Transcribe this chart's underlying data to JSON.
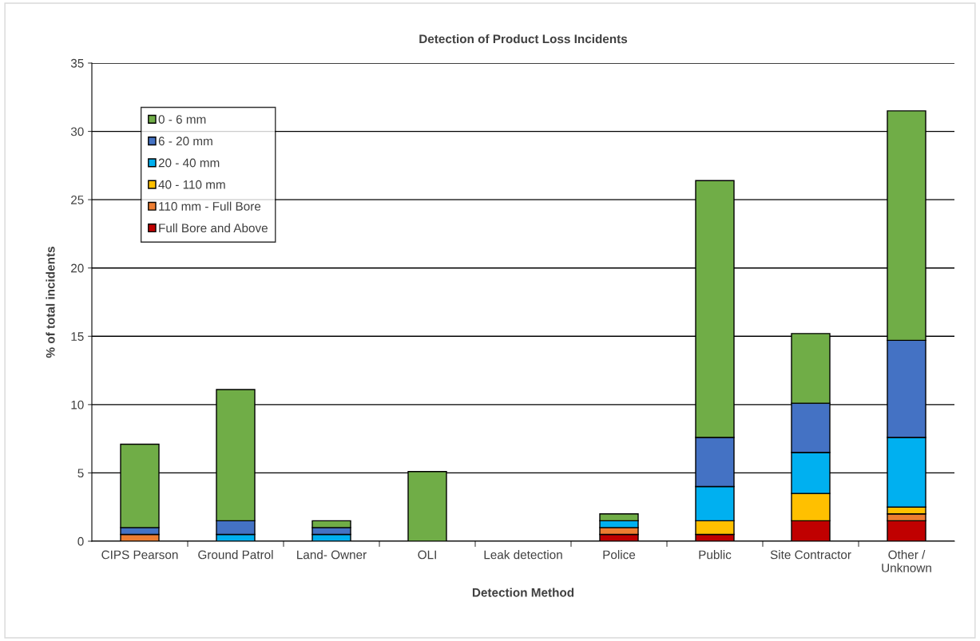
{
  "chart_data": {
    "type": "bar",
    "stacked": true,
    "title": "Detection of Product Loss Incidents",
    "xlabel": "Detection Method",
    "ylabel": "% of total incidents",
    "categories": [
      "CIPS Pearson",
      "Ground Patrol",
      "Land- Owner",
      "OLI",
      "Leak detection",
      "Police",
      "Public",
      "Site Contractor",
      "Other /\nUnknown"
    ],
    "series": [
      {
        "name": "Full Bore and Above",
        "color": "#c00000",
        "values": [
          0,
          0,
          0,
          0,
          0,
          0.5,
          0.5,
          1.5,
          1.5
        ]
      },
      {
        "name": "110 mm - Full Bore",
        "color": "#ed7d31",
        "values": [
          0.5,
          0,
          0,
          0,
          0,
          0.5,
          0,
          0,
          0.5
        ]
      },
      {
        "name": "40 - 110 mm",
        "color": "#ffc000",
        "values": [
          0,
          0,
          0,
          0,
          0,
          0,
          1.0,
          2.0,
          0.5
        ]
      },
      {
        "name": "20 - 40 mm",
        "color": "#00b0f0",
        "values": [
          0,
          0.5,
          0.5,
          0,
          0,
          0.5,
          2.5,
          3.0,
          5.1
        ]
      },
      {
        "name": "6 - 20 mm",
        "color": "#4472c4",
        "values": [
          0.5,
          1.0,
          0.5,
          0,
          0,
          0,
          3.6,
          3.6,
          7.1
        ]
      },
      {
        "name": "0 - 6 mm",
        "color": "#70ad47",
        "values": [
          6.1,
          9.6,
          0.5,
          5.1,
          0,
          0.5,
          18.8,
          5.1,
          16.8
        ]
      }
    ],
    "ylim": [
      0,
      35
    ],
    "yticks": [
      0,
      5,
      10,
      15,
      20,
      25,
      30,
      35
    ],
    "grid": "y",
    "legend": "top left"
  }
}
